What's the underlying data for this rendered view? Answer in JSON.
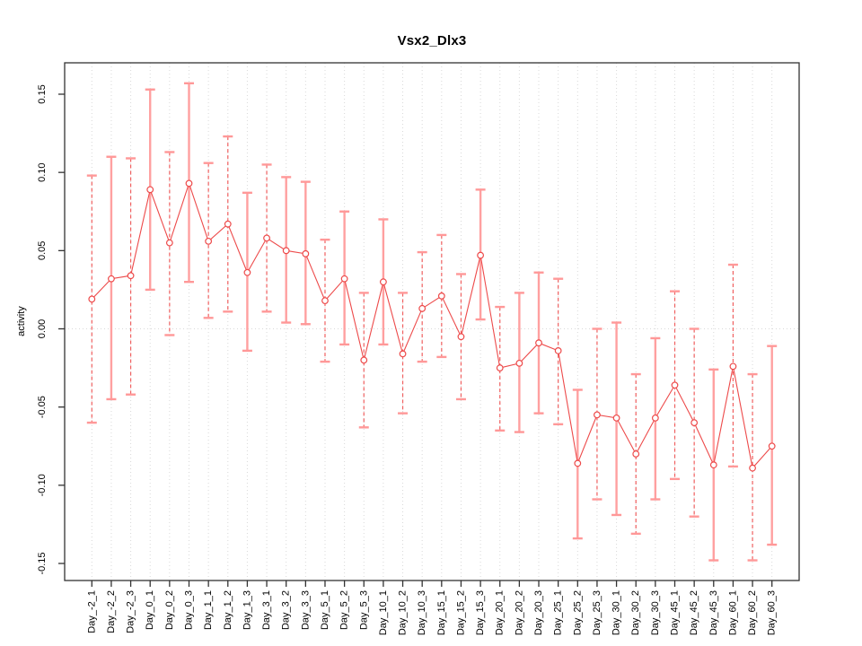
{
  "chart_data": {
    "type": "line",
    "title": "Vsx2_Dlx3",
    "ylabel": "activity",
    "xlabel": "",
    "legend": "none",
    "grid": {
      "vertical": "dotted line at every category",
      "horizontal": "dotted line at zero only"
    },
    "ylim": [
      -0.161,
      0.17
    ],
    "ytick_labels": [
      "-0.15",
      "-0.10",
      "-0.05",
      "0.00",
      "0.05",
      "0.10",
      "0.15"
    ],
    "ytick_values": [
      -0.15,
      -0.1,
      -0.05,
      0.0,
      0.05,
      0.1,
      0.15
    ],
    "categories": [
      "Day_-2_1",
      "Day_-2_2",
      "Day_-2_3",
      "Day_0_1",
      "Day_0_2",
      "Day_0_3",
      "Day_1_1",
      "Day_1_2",
      "Day_1_3",
      "Day_3_1",
      "Day_3_2",
      "Day_3_3",
      "Day_5_1",
      "Day_5_2",
      "Day_5_3",
      "Day_10_1",
      "Day_10_2",
      "Day_10_3",
      "Day_15_1",
      "Day_15_2",
      "Day_15_3",
      "Day_20_1",
      "Day_20_2",
      "Day_20_3",
      "Day_25_1",
      "Day_25_2",
      "Day_25_3",
      "Day_30_1",
      "Day_30_2",
      "Day_30_3",
      "Day_45_1",
      "Day_45_2",
      "Day_45_3",
      "Day_60_1",
      "Day_60_2",
      "Day_60_3"
    ],
    "series": [
      {
        "name": "activity",
        "marker": "open-circle",
        "values": [
          0.019,
          0.032,
          0.034,
          0.089,
          0.055,
          0.093,
          0.056,
          0.067,
          0.036,
          0.058,
          0.05,
          0.048,
          0.018,
          0.032,
          -0.02,
          0.03,
          -0.016,
          0.013,
          0.021,
          -0.005,
          0.047,
          -0.025,
          -0.022,
          -0.009,
          -0.014,
          -0.086,
          -0.055,
          -0.057,
          -0.08,
          -0.057,
          -0.036,
          -0.06,
          -0.087,
          -0.024,
          -0.089,
          -0.075
        ],
        "error_low": [
          -0.06,
          -0.045,
          -0.042,
          0.025,
          -0.004,
          0.03,
          0.007,
          0.011,
          -0.014,
          0.011,
          0.004,
          0.003,
          -0.021,
          -0.01,
          -0.063,
          -0.01,
          -0.054,
          -0.021,
          -0.018,
          -0.045,
          0.006,
          -0.065,
          -0.066,
          -0.054,
          -0.061,
          -0.134,
          -0.109,
          -0.119,
          -0.131,
          -0.109,
          -0.096,
          -0.12,
          -0.148,
          -0.088,
          -0.148,
          -0.138
        ],
        "error_high": [
          0.098,
          0.11,
          0.109,
          0.153,
          0.113,
          0.157,
          0.106,
          0.123,
          0.087,
          0.105,
          0.097,
          0.094,
          0.057,
          0.075,
          0.023,
          0.07,
          0.023,
          0.049,
          0.06,
          0.035,
          0.089,
          0.014,
          0.023,
          0.036,
          0.032,
          -0.039,
          0.0,
          0.004,
          -0.029,
          -0.006,
          0.024,
          0.0,
          -0.026,
          0.041,
          -0.029,
          -0.011
        ],
        "bar_styles": [
          "dashed",
          "solid",
          "dashed",
          "solid",
          "dashed",
          "solid",
          "dashed",
          "dashed",
          "solid",
          "dashed",
          "solid",
          "solid",
          "dashed",
          "solid",
          "dashed",
          "solid",
          "dashed",
          "dashed",
          "dashed",
          "dashed",
          "solid",
          "dashed",
          "solid",
          "solid",
          "dashed",
          "solid",
          "dashed",
          "solid",
          "dashed",
          "solid",
          "dashed",
          "dashed",
          "solid",
          "dashed",
          "dashed",
          "solid"
        ]
      }
    ],
    "colors": {
      "series_line": "#ed4a4a",
      "marker_stroke": "#ed4a4a",
      "marker_fill": "#ffffff",
      "errorbar_dashed": "#f06060",
      "errorbar_solid": "#ffa0a0",
      "errorbar_cap": "#ff9898",
      "gridline": "#d9d9d9",
      "axis": "#333333",
      "text": "#000000",
      "background": "#ffffff"
    }
  }
}
